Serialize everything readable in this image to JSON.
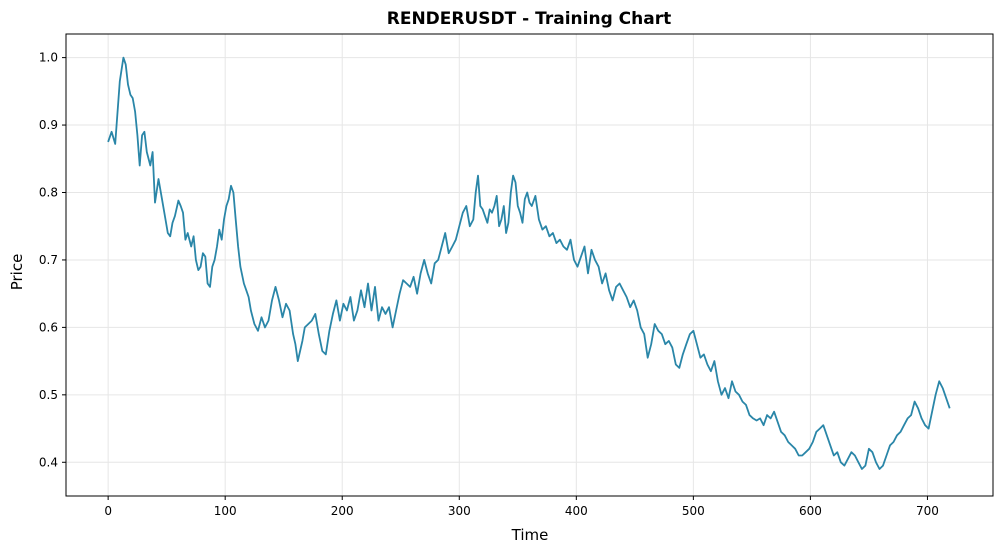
{
  "chart_data": {
    "type": "line",
    "title": "RENDERUSDT - Training Chart",
    "xlabel": "Time",
    "ylabel": "Price",
    "xlim": [
      -36,
      756
    ],
    "ylim": [
      0.35,
      1.035
    ],
    "xticks": [
      0,
      100,
      200,
      300,
      400,
      500,
      600,
      700
    ],
    "yticks": [
      0.4,
      0.5,
      0.6,
      0.7,
      0.8,
      0.9,
      1.0
    ],
    "ytick_labels": [
      "0.4",
      "0.5",
      "0.6",
      "0.7",
      "0.8",
      "0.9",
      "1.0"
    ],
    "grid": true,
    "legend": "none",
    "line_color": "#2a86a8",
    "series": [
      {
        "x": [
          0,
          3,
          6,
          10,
          13,
          15,
          17,
          19,
          21,
          23,
          25,
          27,
          29,
          31,
          33,
          36,
          38,
          40,
          43,
          46,
          49,
          51,
          53,
          55,
          57,
          60,
          62,
          64,
          66,
          68,
          71,
          73,
          75,
          77,
          79,
          81,
          83,
          85,
          87,
          89,
          91,
          93,
          95,
          97,
          99,
          101,
          103,
          105,
          107,
          109,
          111,
          113,
          116,
          118,
          120,
          122,
          125,
          128,
          131,
          134,
          137,
          140,
          143,
          146,
          149,
          152,
          155,
          158,
          160,
          162,
          164,
          166,
          168,
          171,
          174,
          177,
          180,
          183,
          186,
          189,
          192,
          195,
          198,
          201,
          204,
          207,
          210,
          213,
          216,
          219,
          222,
          225,
          228,
          231,
          234,
          237,
          240,
          243,
          246,
          249,
          252,
          255,
          258,
          261,
          264,
          267,
          270,
          273,
          276,
          279,
          282,
          285,
          288,
          291,
          294,
          297,
          300,
          303,
          306,
          309,
          312,
          314,
          316,
          318,
          320,
          322,
          324,
          326,
          328,
          330,
          332,
          334,
          336,
          338,
          340,
          342,
          344,
          346,
          348,
          350,
          352,
          354,
          356,
          358,
          360,
          362,
          365,
          368,
          371,
          374,
          377,
          380,
          383,
          386,
          389,
          392,
          395,
          398,
          401,
          404,
          407,
          410,
          413,
          416,
          419,
          422,
          425,
          428,
          431,
          434,
          437,
          440,
          443,
          446,
          449,
          452,
          455,
          458,
          461,
          464,
          467,
          470,
          473,
          476,
          479,
          482,
          485,
          488,
          491,
          494,
          497,
          500,
          503,
          506,
          509,
          512,
          515,
          518,
          521,
          524,
          527,
          530,
          533,
          536,
          539,
          542,
          545,
          548,
          551,
          554,
          557,
          560,
          563,
          566,
          569,
          572,
          575,
          578,
          581,
          584,
          587,
          590,
          593,
          596,
          599,
          602,
          605,
          608,
          611,
          614,
          617,
          620,
          623,
          626,
          629,
          632,
          635,
          638,
          641,
          644,
          647,
          650,
          653,
          656,
          659,
          662,
          665,
          668,
          671,
          674,
          677,
          680,
          683,
          686,
          689,
          692,
          695,
          698,
          701,
          704,
          707,
          710,
          713,
          716,
          719
        ],
        "y": [
          0.875,
          0.89,
          0.872,
          0.965,
          1.0,
          0.99,
          0.96,
          0.945,
          0.94,
          0.92,
          0.885,
          0.84,
          0.885,
          0.89,
          0.86,
          0.84,
          0.86,
          0.785,
          0.82,
          0.79,
          0.76,
          0.74,
          0.735,
          0.755,
          0.765,
          0.788,
          0.78,
          0.77,
          0.73,
          0.74,
          0.72,
          0.735,
          0.7,
          0.685,
          0.69,
          0.71,
          0.705,
          0.665,
          0.66,
          0.69,
          0.7,
          0.72,
          0.745,
          0.73,
          0.76,
          0.78,
          0.79,
          0.81,
          0.8,
          0.76,
          0.72,
          0.69,
          0.665,
          0.655,
          0.645,
          0.625,
          0.605,
          0.595,
          0.615,
          0.6,
          0.61,
          0.64,
          0.66,
          0.64,
          0.615,
          0.635,
          0.625,
          0.59,
          0.575,
          0.55,
          0.565,
          0.58,
          0.6,
          0.605,
          0.61,
          0.62,
          0.59,
          0.565,
          0.56,
          0.595,
          0.62,
          0.64,
          0.61,
          0.635,
          0.625,
          0.645,
          0.61,
          0.625,
          0.655,
          0.63,
          0.665,
          0.625,
          0.66,
          0.61,
          0.63,
          0.62,
          0.63,
          0.6,
          0.625,
          0.65,
          0.67,
          0.665,
          0.66,
          0.675,
          0.65,
          0.68,
          0.7,
          0.68,
          0.665,
          0.695,
          0.7,
          0.72,
          0.74,
          0.71,
          0.72,
          0.73,
          0.75,
          0.77,
          0.78,
          0.75,
          0.76,
          0.8,
          0.825,
          0.78,
          0.775,
          0.765,
          0.755,
          0.775,
          0.77,
          0.78,
          0.795,
          0.75,
          0.76,
          0.78,
          0.74,
          0.755,
          0.8,
          0.825,
          0.815,
          0.78,
          0.77,
          0.755,
          0.79,
          0.8,
          0.785,
          0.78,
          0.795,
          0.76,
          0.745,
          0.75,
          0.735,
          0.74,
          0.725,
          0.73,
          0.72,
          0.715,
          0.73,
          0.7,
          0.69,
          0.705,
          0.72,
          0.68,
          0.715,
          0.7,
          0.69,
          0.665,
          0.68,
          0.655,
          0.64,
          0.66,
          0.665,
          0.655,
          0.645,
          0.63,
          0.64,
          0.625,
          0.6,
          0.59,
          0.555,
          0.575,
          0.605,
          0.595,
          0.59,
          0.575,
          0.58,
          0.57,
          0.545,
          0.54,
          0.56,
          0.575,
          0.59,
          0.595,
          0.575,
          0.555,
          0.56,
          0.545,
          0.535,
          0.55,
          0.52,
          0.5,
          0.51,
          0.495,
          0.52,
          0.505,
          0.5,
          0.49,
          0.485,
          0.47,
          0.465,
          0.462,
          0.465,
          0.455,
          0.47,
          0.465,
          0.475,
          0.46,
          0.445,
          0.44,
          0.43,
          0.425,
          0.42,
          0.41,
          0.41,
          0.415,
          0.42,
          0.43,
          0.445,
          0.45,
          0.455,
          0.44,
          0.425,
          0.41,
          0.415,
          0.4,
          0.395,
          0.405,
          0.415,
          0.41,
          0.4,
          0.39,
          0.395,
          0.42,
          0.415,
          0.4,
          0.39,
          0.395,
          0.41,
          0.425,
          0.43,
          0.44,
          0.445,
          0.455,
          0.465,
          0.47,
          0.49,
          0.48,
          0.465,
          0.455,
          0.45,
          0.475,
          0.5,
          0.52,
          0.51,
          0.495,
          0.48
        ]
      }
    ]
  }
}
